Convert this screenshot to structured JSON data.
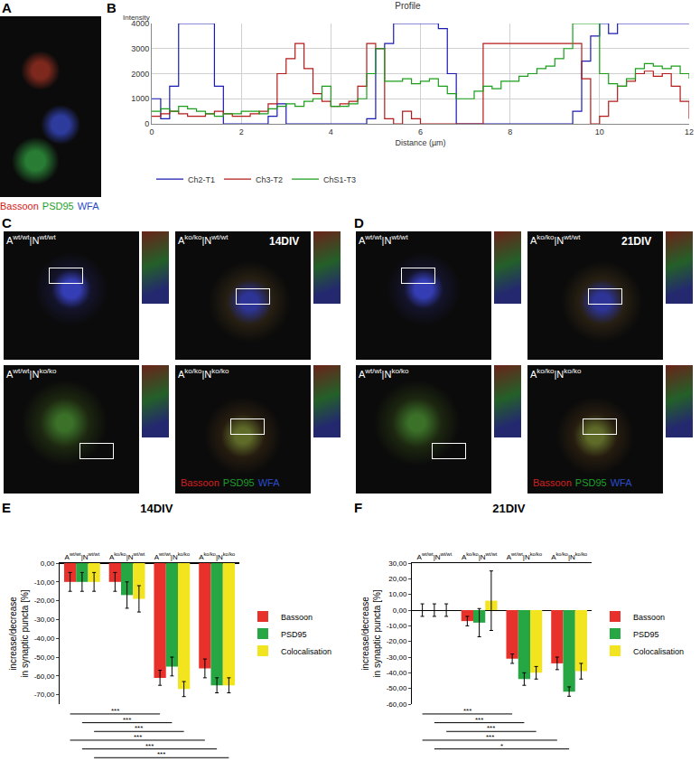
{
  "figure": {
    "panel_letters": [
      "A",
      "B",
      "C",
      "D",
      "E",
      "F"
    ],
    "stain_legend": [
      {
        "text": "Bassoon",
        "color": "#d42020"
      },
      {
        "text": "PSD95",
        "color": "#1f9e2a"
      },
      {
        "text": "WFA",
        "color": "#2a4cc8"
      }
    ],
    "image_panels": [
      {
        "timepoint": "14DIV",
        "images": [
          "A wt/wt |N wt/wt",
          "A ko/ko |N wt/wt",
          "A wt/wt |N ko/ko",
          "A ko/ko |N ko/ko"
        ]
      },
      {
        "timepoint": "21DIV",
        "images": [
          "A wt/wt |N wt/wt",
          "A ko/ko |N wt/wt",
          "A wt/wt |N ko/ko",
          "A ko/ko |N ko/ko"
        ]
      }
    ]
  },
  "chart_data": [
    {
      "type": "line",
      "title": "Profile",
      "ylabel": "Intensity",
      "xlabel": "Distance (µm)",
      "x": [
        0,
        0.2,
        0.4,
        0.6,
        0.8,
        1,
        1.2,
        1.4,
        1.6,
        1.8,
        2,
        2.2,
        2.4,
        2.6,
        2.8,
        3,
        3.2,
        3.4,
        3.6,
        3.8,
        4,
        4.2,
        4.4,
        4.6,
        4.8,
        5,
        5.2,
        5.4,
        5.6,
        5.8,
        6,
        6.2,
        6.4,
        6.6,
        6.8,
        7,
        7.2,
        7.4,
        7.6,
        7.8,
        8,
        8.2,
        8.4,
        8.6,
        8.8,
        9,
        9.2,
        9.4,
        9.6,
        9.8,
        10,
        10.2,
        10.4,
        10.6,
        10.8,
        11,
        11.2,
        11.4,
        11.6,
        11.8,
        12
      ],
      "series": [
        {
          "name": "Ch2-T1",
          "color": "#1a1ab4",
          "line_style": "step",
          "values": [
            1000,
            200,
            1500,
            4000,
            4000,
            4000,
            4000,
            1500,
            0,
            0,
            0,
            0,
            0,
            300,
            800,
            0,
            0,
            0,
            0,
            0,
            0,
            0,
            0,
            0,
            200,
            3000,
            3200,
            4000,
            4000,
            4000,
            4000,
            4000,
            3800,
            2000,
            0,
            0,
            0,
            0,
            0,
            0,
            0,
            0,
            0,
            0,
            0,
            0,
            0,
            500,
            2500,
            3500,
            4000,
            3600,
            4000,
            4000,
            4000,
            4000,
            4000,
            4000,
            4000,
            4000,
            4000
          ]
        },
        {
          "name": "Ch3-T2",
          "color": "#b41a1a",
          "line_style": "step",
          "values": [
            300,
            400,
            500,
            400,
            300,
            300,
            400,
            500,
            400,
            300,
            300,
            400,
            500,
            800,
            2000,
            2600,
            3200,
            2200,
            1200,
            900,
            700,
            800,
            900,
            1500,
            3200,
            3000,
            200,
            0,
            500,
            200,
            0,
            0,
            0,
            0,
            0,
            0,
            0,
            3200,
            3200,
            3200,
            3200,
            3200,
            3200,
            3200,
            3200,
            3200,
            3200,
            3200,
            1800,
            0,
            300,
            900,
            1500,
            1700,
            2000,
            2100,
            1900,
            2000,
            1500,
            900,
            200
          ]
        },
        {
          "name": "ChS1-T3",
          "color": "#1a9e1a",
          "line_style": "step",
          "values": [
            500,
            600,
            500,
            700,
            600,
            500,
            400,
            300,
            400,
            400,
            500,
            500,
            400,
            600,
            700,
            800,
            700,
            900,
            1000,
            1500,
            700,
            700,
            800,
            1000,
            2000,
            3000,
            1700,
            1700,
            1800,
            1600,
            1700,
            1800,
            1500,
            1200,
            1000,
            1000,
            1300,
            1500,
            1400,
            1700,
            1700,
            1900,
            2000,
            2200,
            2300,
            2600,
            3000,
            4000,
            4000,
            4000,
            2000,
            1600,
            1500,
            1800,
            2200,
            2400,
            2300,
            2200,
            2300,
            2000,
            1800
          ]
        }
      ],
      "xlim": [
        0,
        12
      ],
      "ylim": [
        0,
        4000
      ],
      "xticks": [
        0,
        2,
        4,
        6,
        8,
        10,
        12
      ],
      "yticks": [
        0,
        1000,
        2000,
        3000,
        4000
      ],
      "grid": true,
      "legend": "bottom"
    },
    {
      "type": "bar",
      "title": "14DIV",
      "categories": [
        "A wt/wt |N wt/wt",
        "A ko/ko |N wt/wt",
        "A wt/wt |N ko/ko",
        "A ko/ko |N ko/ko"
      ],
      "series": [
        {
          "name": "Bassoon",
          "color": "#e8312a",
          "values": [
            -10,
            -10,
            -61,
            -56
          ],
          "errors": [
            5,
            5,
            4,
            5
          ]
        },
        {
          "name": "PSD95",
          "color": "#27a644",
          "values": [
            -10,
            -17,
            -55,
            -65
          ],
          "errors": [
            5,
            7,
            5,
            4
          ]
        },
        {
          "name": "Colocalisation",
          "color": "#f2e41e",
          "values": [
            -10,
            -19,
            -67,
            -65
          ],
          "errors": [
            5,
            7,
            4,
            4
          ]
        }
      ],
      "ylabel": "increase/decrease\nin synaptic puncta [%]",
      "ylim": [
        -75,
        0
      ],
      "yticks": [
        {
          "value": 0,
          "label": "0,00"
        },
        {
          "value": -10,
          "label": "-10,00"
        },
        {
          "value": -20,
          "label": "-20,00"
        },
        {
          "value": -30,
          "label": "-30,00"
        },
        {
          "value": -40,
          "label": "-40,00"
        },
        {
          "value": -50,
          "label": "-50,00"
        },
        {
          "value": -60,
          "label": "-60,00"
        },
        {
          "value": -70,
          "label": "-70,00"
        }
      ],
      "legend": "right",
      "significance": [
        {
          "from": 0,
          "to": 2,
          "series": "Bassoon",
          "text": "***"
        },
        {
          "from": 0,
          "to": 2,
          "series": "PSD95",
          "text": "***"
        },
        {
          "from": 0,
          "to": 2,
          "series": "Colocalisation",
          "text": "***"
        },
        {
          "from": 0,
          "to": 3,
          "series": "Bassoon",
          "text": "***"
        },
        {
          "from": 0,
          "to": 3,
          "series": "PSD95",
          "text": "***"
        },
        {
          "from": 0,
          "to": 3,
          "series": "Colocalisation",
          "text": "***"
        }
      ]
    },
    {
      "type": "bar",
      "title": "21DIV",
      "categories": [
        "A wt/wt |N wt/wt",
        "A ko/ko |N wt/wt",
        "A wt/wt |N ko/ko",
        "A ko/ko |N ko/ko"
      ],
      "series": [
        {
          "name": "Bassoon",
          "color": "#e8312a",
          "values": [
            0,
            -7,
            -31,
            -34
          ],
          "errors": [
            4,
            3,
            3,
            4
          ]
        },
        {
          "name": "PSD95",
          "color": "#27a644",
          "values": [
            0,
            -8,
            -44,
            -52
          ],
          "errors": [
            4,
            9,
            4,
            3
          ]
        },
        {
          "name": "Colocalisation",
          "color": "#f2e41e",
          "values": [
            0,
            6,
            -40,
            -39
          ],
          "errors": [
            4,
            19,
            4,
            5
          ]
        }
      ],
      "ylabel": "increase/decrease\nin synaptic puncta [%]",
      "ylim": [
        -60,
        30
      ],
      "yticks": [
        {
          "value": 30,
          "label": "30,00"
        },
        {
          "value": 20,
          "label": "20,00"
        },
        {
          "value": 10,
          "label": "10,00"
        },
        {
          "value": 0,
          "label": "0,00"
        },
        {
          "value": -10,
          "label": "-10,00"
        },
        {
          "value": -20,
          "label": "-20,00"
        },
        {
          "value": -30,
          "label": "-30,00"
        },
        {
          "value": -40,
          "label": "-40,00"
        },
        {
          "value": -50,
          "label": "-50,00"
        },
        {
          "value": -60,
          "label": "-60,00"
        }
      ],
      "legend": "right",
      "significance": [
        {
          "from": 0,
          "to": 2,
          "series": "Bassoon",
          "text": "***"
        },
        {
          "from": 0,
          "to": 2,
          "series": "PSD95",
          "text": "***"
        },
        {
          "from": 0,
          "to": 2,
          "series": "Colocalisation",
          "text": "***"
        },
        {
          "from": 0,
          "to": 3,
          "series": "Bassoon",
          "text": "***"
        },
        {
          "from": 0,
          "to": 3,
          "series": "PSD95",
          "text": "*"
        }
      ]
    }
  ]
}
